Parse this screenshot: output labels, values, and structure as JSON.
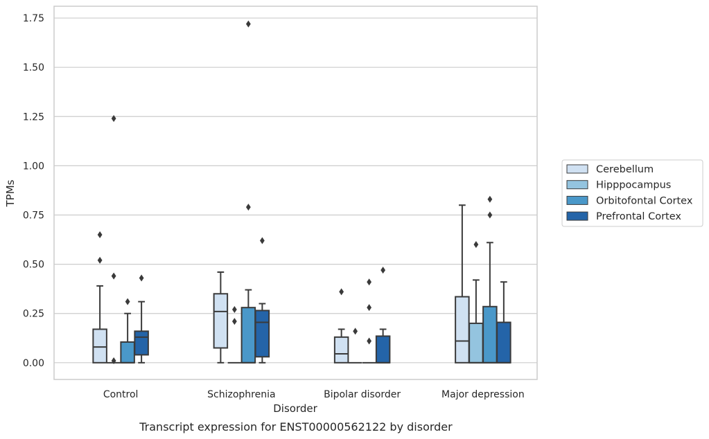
{
  "chart_data": {
    "type": "box",
    "title": "",
    "caption": "Transcript expression for ENST00000562122 by disorder",
    "xlabel": "Disorder",
    "ylabel": "TPMs",
    "ylim": [
      -0.085,
      1.81
    ],
    "yticks": [
      0.0,
      0.25,
      0.5,
      0.75,
      1.0,
      1.25,
      1.5,
      1.75
    ],
    "ytick_labels": [
      "0.00",
      "0.25",
      "0.50",
      "0.75",
      "1.00",
      "1.25",
      "1.50",
      "1.75"
    ],
    "grid": "horizontal",
    "legend_position": "right",
    "categories": [
      "Control",
      "Schizophrenia",
      "Bipolar disorder",
      "Major depression"
    ],
    "series": [
      {
        "name": "Cerebellum",
        "color": "#d0e1f2",
        "boxes": [
          {
            "q1": 0.0,
            "median": 0.08,
            "q3": 0.17,
            "whisker_low": 0.0,
            "whisker_high": 0.39,
            "outliers": [
              0.52,
              0.65
            ]
          },
          {
            "q1": 0.075,
            "median": 0.26,
            "q3": 0.35,
            "whisker_low": 0.0,
            "whisker_high": 0.46,
            "outliers": []
          },
          {
            "q1": 0.0,
            "median": 0.045,
            "q3": 0.13,
            "whisker_low": 0.0,
            "whisker_high": 0.17,
            "outliers": [
              0.36
            ]
          },
          {
            "q1": 0.0,
            "median": 0.11,
            "q3": 0.335,
            "whisker_low": 0.0,
            "whisker_high": 0.8,
            "outliers": []
          }
        ]
      },
      {
        "name": "Hipppocampus",
        "color": "#94c4df",
        "boxes": [
          {
            "q1": 0.0,
            "median": 0.0,
            "q3": 0.0,
            "whisker_low": 0.0,
            "whisker_high": 0.0,
            "outliers": [
              0.01,
              0.44,
              1.24
            ]
          },
          {
            "q1": 0.0,
            "median": 0.0,
            "q3": 0.0,
            "whisker_low": 0.0,
            "whisker_high": 0.0,
            "outliers": [
              0.21,
              0.27
            ]
          },
          {
            "q1": 0.0,
            "median": 0.0,
            "q3": 0.0,
            "whisker_low": 0.0,
            "whisker_high": 0.0,
            "outliers": [
              0.16
            ]
          },
          {
            "q1": 0.0,
            "median": 0.0,
            "q3": 0.2,
            "whisker_low": 0.0,
            "whisker_high": 0.42,
            "outliers": [
              0.6
            ]
          }
        ]
      },
      {
        "name": "Orbitofontal Cortex",
        "color": "#4a98c9",
        "boxes": [
          {
            "q1": 0.0,
            "median": 0.0,
            "q3": 0.105,
            "whisker_low": 0.0,
            "whisker_high": 0.25,
            "outliers": [
              0.31
            ]
          },
          {
            "q1": 0.0,
            "median": 0.0,
            "q3": 0.28,
            "whisker_low": 0.0,
            "whisker_high": 0.37,
            "outliers": [
              0.79,
              1.72
            ]
          },
          {
            "q1": 0.0,
            "median": 0.0,
            "q3": 0.0,
            "whisker_low": 0.0,
            "whisker_high": 0.0,
            "outliers": [
              0.11,
              0.28,
              0.41
            ]
          },
          {
            "q1": 0.0,
            "median": 0.0,
            "q3": 0.285,
            "whisker_low": 0.0,
            "whisker_high": 0.61,
            "outliers": [
              0.75,
              0.83
            ]
          }
        ]
      },
      {
        "name": "Prefrontal Cortex",
        "color": "#2464a8",
        "boxes": [
          {
            "q1": 0.04,
            "median": 0.13,
            "q3": 0.16,
            "whisker_low": 0.0,
            "whisker_high": 0.31,
            "outliers": [
              0.43
            ]
          },
          {
            "q1": 0.03,
            "median": 0.205,
            "q3": 0.265,
            "whisker_low": 0.0,
            "whisker_high": 0.3,
            "outliers": [
              0.62
            ]
          },
          {
            "q1": 0.0,
            "median": 0.0,
            "q3": 0.135,
            "whisker_low": 0.0,
            "whisker_high": 0.17,
            "outliers": [
              0.47
            ]
          },
          {
            "q1": 0.0,
            "median": 0.0,
            "q3": 0.205,
            "whisker_low": 0.0,
            "whisker_high": 0.41,
            "outliers": []
          }
        ]
      }
    ]
  }
}
